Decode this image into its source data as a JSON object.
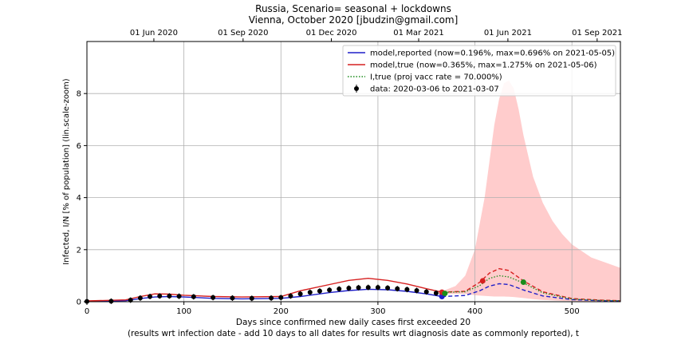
{
  "chart_data": {
    "type": "line",
    "title_line1": "Russia, Scenario= seasonal + lockdowns",
    "title_line2": "Vienna, October 2020 [jbudzin@gmail.com]",
    "xlabel_line1": "Days since confirmed new daily cases first exceeded 20",
    "xlabel_line2": "(results wrt infection date - add 10 days to all dates for results wrt diagnosis date as commonly reported), t",
    "ylabel": "Infected, I/N [% of population] (lin.scale-zoom)",
    "xlim": [
      0,
      550
    ],
    "ylim": [
      0,
      10
    ],
    "x_ticks": [
      0,
      100,
      200,
      300,
      400,
      500
    ],
    "y_ticks": [
      0,
      2,
      4,
      6,
      8
    ],
    "top_axis": {
      "ticks": [
        {
          "x": 69,
          "label": "01 Jun 2020"
        },
        {
          "x": 161,
          "label": "01 Sep 2020"
        },
        {
          "x": 252,
          "label": "01 Dec 2020"
        },
        {
          "x": 342,
          "label": "01 Mar 2021"
        },
        {
          "x": 434,
          "label": "01 Jun 2021"
        },
        {
          "x": 526,
          "label": "01 Sep 2021"
        }
      ]
    },
    "grid": true,
    "legend_position": "top-right",
    "legend": [
      {
        "label": "model,reported (now=0.196%, max=0.696% on 2021-05-05)",
        "style": "line",
        "color": "#1f1fc8"
      },
      {
        "label": "model,true (now=0.365%, max=1.275% on 2021-05-06)",
        "style": "line",
        "color": "#d62020"
      },
      {
        "label": "I,true (proj vacc rate = 70.000%)",
        "style": "dotted",
        "color": "#1a8c1a"
      },
      {
        "label": "data: 2020-03-06 to 2021-03-07",
        "style": "marker",
        "color": "#000000"
      }
    ],
    "series": [
      {
        "key": "model_reported",
        "color": "#1f1fc8",
        "x": [
          0,
          40,
          55,
          70,
          85,
          100,
          130,
          160,
          200,
          220,
          250,
          270,
          290,
          310,
          330,
          350,
          366
        ],
        "y": [
          0.02,
          0.04,
          0.12,
          0.18,
          0.2,
          0.18,
          0.13,
          0.11,
          0.13,
          0.2,
          0.35,
          0.43,
          0.48,
          0.46,
          0.4,
          0.3,
          0.2
        ]
      },
      {
        "key": "model_reported_projection",
        "color": "#1f1fc8",
        "x": [
          366,
          390,
          405,
          415,
          425,
          435,
          450,
          470,
          500,
          530,
          550
        ],
        "y": [
          0.2,
          0.24,
          0.42,
          0.6,
          0.69,
          0.66,
          0.45,
          0.22,
          0.08,
          0.04,
          0.03
        ]
      },
      {
        "key": "model_true",
        "color": "#d62020",
        "x": [
          0,
          40,
          55,
          70,
          85,
          100,
          130,
          160,
          200,
          220,
          250,
          270,
          290,
          310,
          330,
          350,
          366
        ],
        "y": [
          0.03,
          0.07,
          0.2,
          0.3,
          0.29,
          0.25,
          0.2,
          0.18,
          0.2,
          0.42,
          0.66,
          0.82,
          0.9,
          0.82,
          0.68,
          0.5,
          0.365
        ]
      },
      {
        "key": "model_true_projection",
        "color": "#d62020",
        "x": [
          366,
          390,
          405,
          415,
          425,
          435,
          450,
          470,
          500,
          530,
          550
        ],
        "y": [
          0.365,
          0.4,
          0.75,
          1.1,
          1.27,
          1.2,
          0.8,
          0.38,
          0.12,
          0.06,
          0.04
        ]
      },
      {
        "key": "I_true_vacc",
        "color": "#1a8c1a",
        "x": [
          366,
          390,
          405,
          415,
          425,
          435,
          450,
          470,
          500,
          530,
          550
        ],
        "y": [
          0.36,
          0.38,
          0.62,
          0.9,
          1.0,
          0.95,
          0.72,
          0.34,
          0.1,
          0.05,
          0.04
        ]
      },
      {
        "key": "data",
        "color": "#000000",
        "x": [
          0,
          25,
          45,
          55,
          65,
          75,
          85,
          95,
          110,
          130,
          150,
          170,
          190,
          200,
          210,
          220,
          230,
          240,
          250,
          260,
          270,
          280,
          290,
          300,
          310,
          320,
          330,
          340,
          350,
          360,
          366
        ],
        "y": [
          0.01,
          0.02,
          0.06,
          0.14,
          0.2,
          0.22,
          0.22,
          0.21,
          0.19,
          0.16,
          0.14,
          0.13,
          0.14,
          0.16,
          0.22,
          0.3,
          0.36,
          0.41,
          0.45,
          0.49,
          0.52,
          0.54,
          0.55,
          0.55,
          0.53,
          0.5,
          0.47,
          0.43,
          0.38,
          0.33,
          0.3
        ]
      }
    ],
    "uncertainty_band": {
      "color": "#ffcccc",
      "x": [
        366,
        380,
        390,
        400,
        410,
        420,
        425,
        430,
        435,
        440,
        445,
        450,
        460,
        470,
        480,
        490,
        500,
        520,
        550
      ],
      "upper": [
        0.4,
        0.6,
        1.0,
        2.0,
        4.0,
        6.8,
        7.8,
        8.4,
        8.5,
        8.2,
        7.4,
        6.4,
        4.8,
        3.8,
        3.1,
        2.6,
        2.2,
        1.7,
        1.3
      ],
      "lower": [
        0.3,
        0.3,
        0.3,
        0.25,
        0.22,
        0.2,
        0.2,
        0.2,
        0.19,
        0.18,
        0.16,
        0.14,
        0.1,
        0.07,
        0.05,
        0.03,
        0.02,
        0.01,
        0.01
      ]
    },
    "markers": [
      {
        "key": "reported_now",
        "x": 366,
        "y": 0.2,
        "color": "#1f1fc8"
      },
      {
        "key": "true_now",
        "x": 366,
        "y": 0.365,
        "color": "#d62020"
      },
      {
        "key": "vacc_now",
        "x": 369,
        "y": 0.32,
        "color": "#1a8c1a"
      },
      {
        "key": "true_mark",
        "x": 408,
        "y": 0.8,
        "color": "#d62020"
      },
      {
        "key": "vacc_mark",
        "x": 450,
        "y": 0.75,
        "color": "#1a8c1a"
      }
    ]
  }
}
